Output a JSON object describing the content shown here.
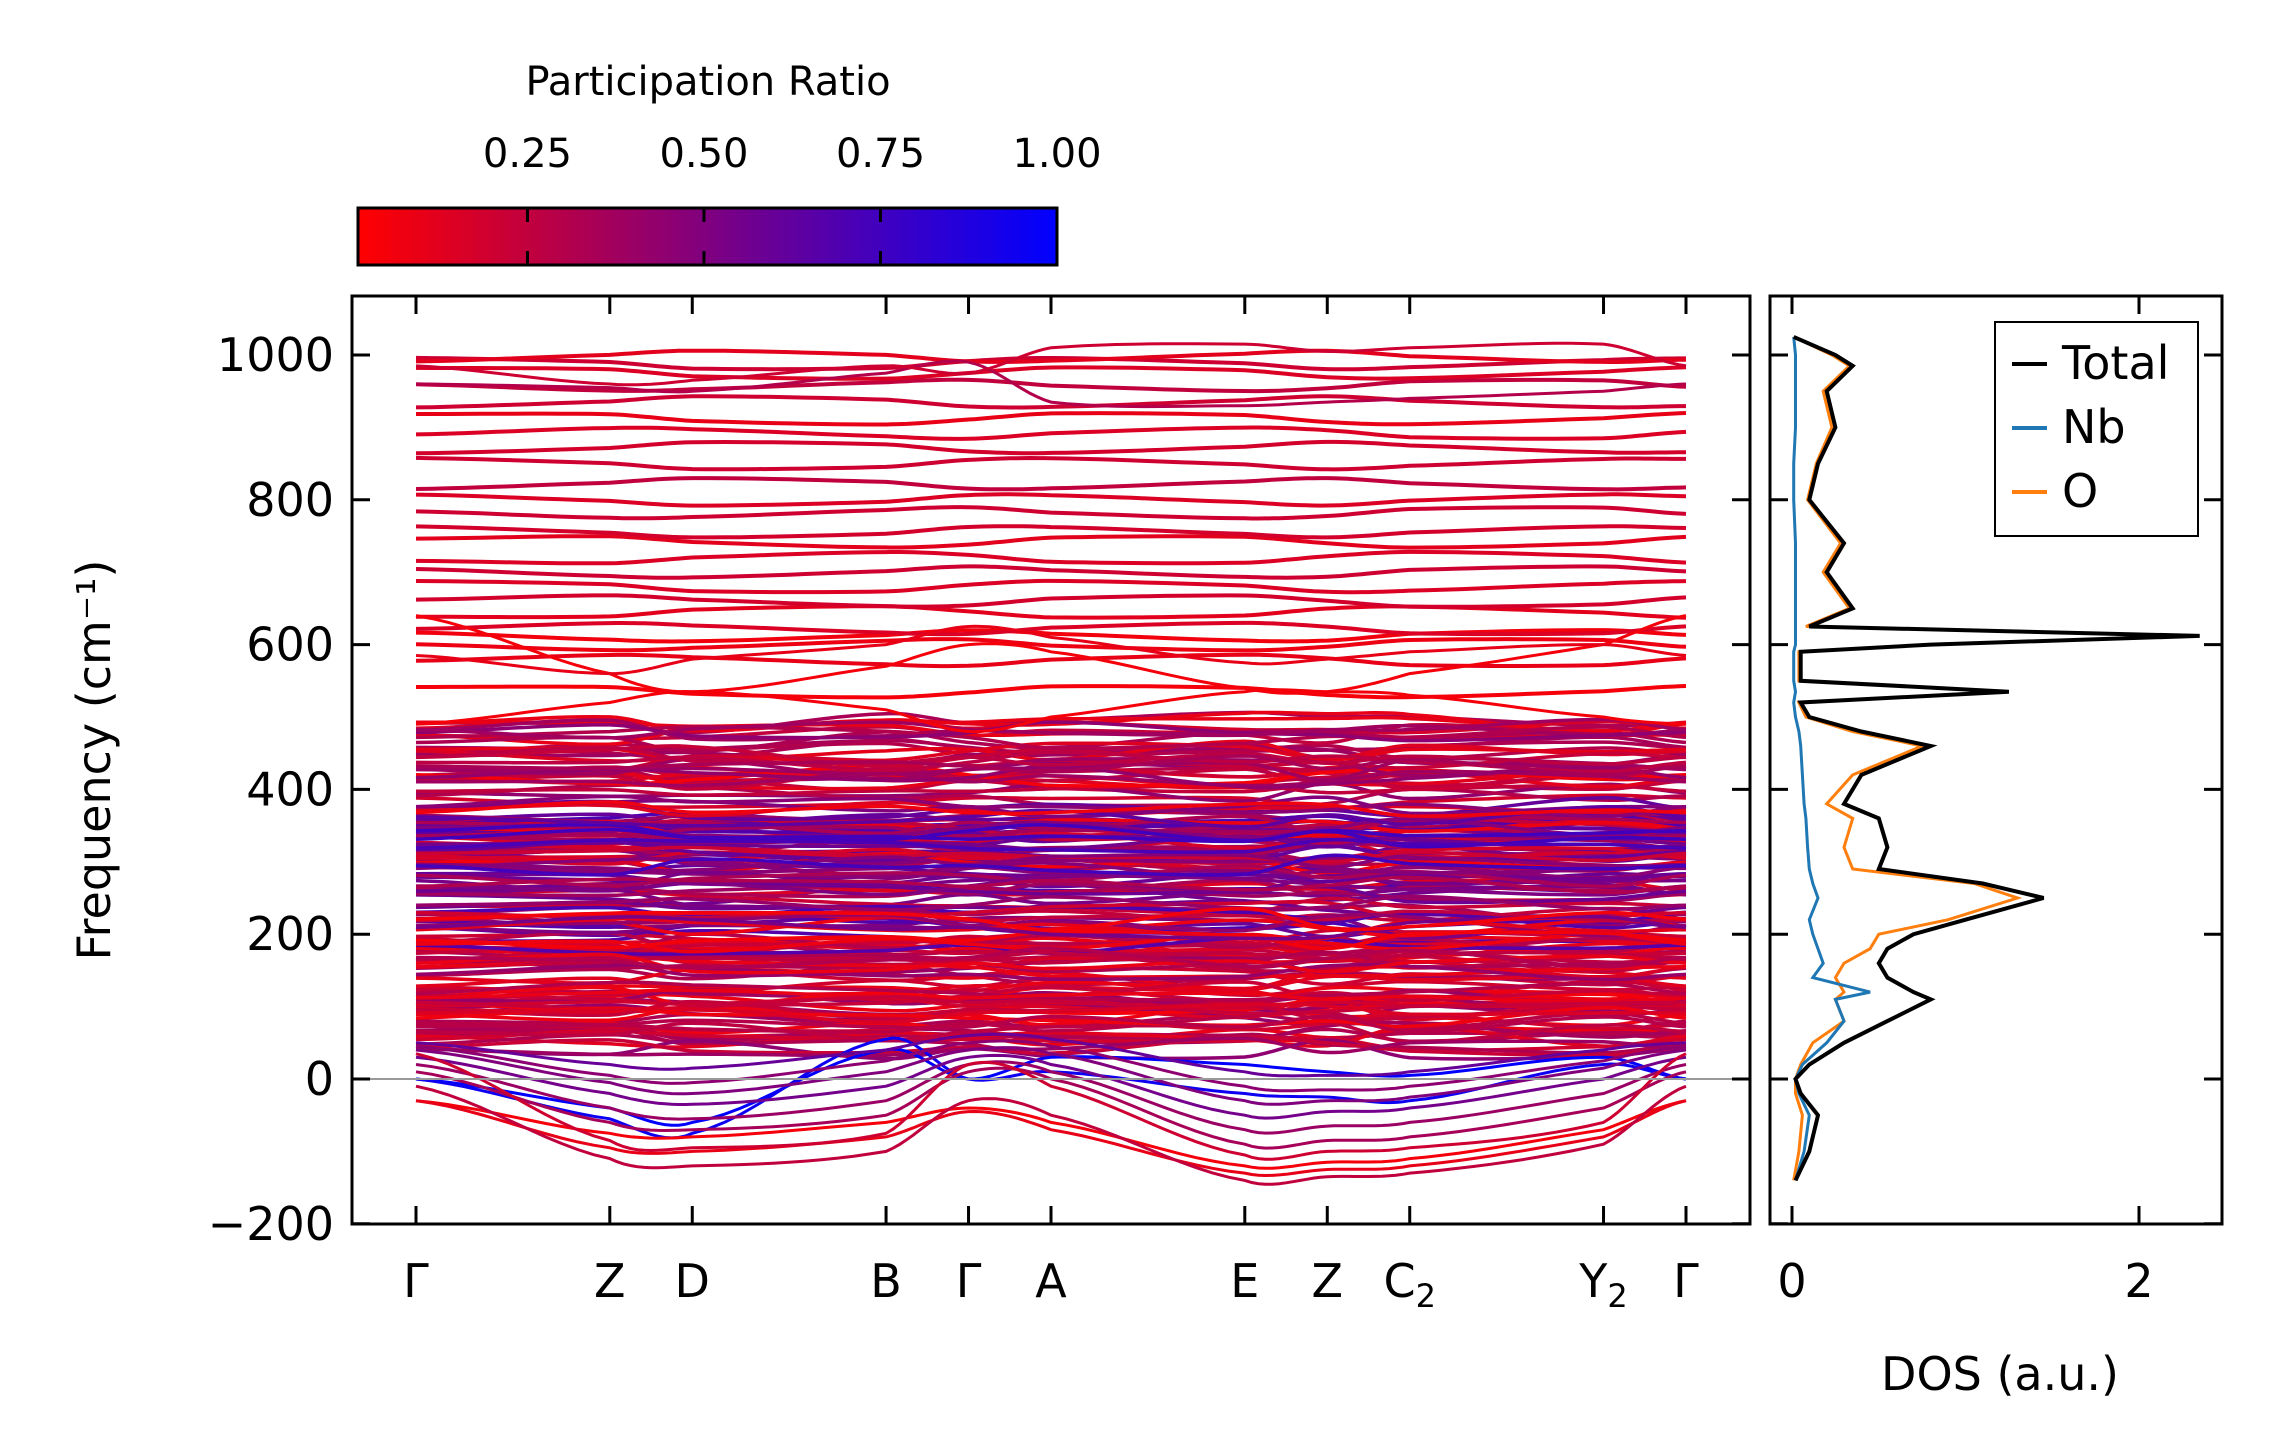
{
  "chart_data": [
    {
      "type": "line",
      "title": "",
      "xlabel": "",
      "ylabel": "Frequency (cm⁻¹)",
      "ylim": [
        -200,
        1083
      ],
      "yticks": [
        -200,
        0,
        200,
        400,
        600,
        800,
        1000
      ],
      "ytick_labels": [
        "−200",
        "0",
        "200",
        "400",
        "600",
        "800",
        "1000"
      ],
      "kpoints": [
        "Γ",
        "Z",
        "D",
        "B",
        "Γ",
        "A",
        "E",
        "Z",
        "C",
        "Y",
        "Γ"
      ],
      "kpoint_subscripts": [
        "",
        "",
        "",
        "",
        "",
        "",
        "",
        "",
        "2",
        "2",
        ""
      ],
      "kpoint_positions": [
        0,
        2.35,
        3.35,
        5.7,
        6.7,
        7.7,
        10.05,
        11.05,
        12.05,
        14.4,
        15.4
      ],
      "zero_line": 0,
      "colorbar": {
        "label": "Participation Ratio",
        "range": [
          0.01,
          1.0
        ],
        "ticks": [
          0.25,
          0.5,
          0.75,
          1.0
        ],
        "tick_labels": [
          "0.25",
          "0.50",
          "0.75",
          "1.00"
        ],
        "colors": [
          "#ff0000",
          "#0000ff"
        ]
      },
      "flat_bands": [
        {
          "f": 535,
          "pr": 0.05
        },
        {
          "f": 578,
          "pr": 0.1
        },
        {
          "f": 600,
          "pr": 0.08
        },
        {
          "f": 612,
          "pr": 0.06
        },
        {
          "f": 622,
          "pr": 0.15
        },
        {
          "f": 645,
          "pr": 0.12
        },
        {
          "f": 660,
          "pr": 0.18
        },
        {
          "f": 680,
          "pr": 0.15
        },
        {
          "f": 700,
          "pr": 0.2
        },
        {
          "f": 720,
          "pr": 0.15
        },
        {
          "f": 742,
          "pr": 0.12
        },
        {
          "f": 756,
          "pr": 0.18
        },
        {
          "f": 782,
          "pr": 0.2
        },
        {
          "f": 800,
          "pr": 0.15
        },
        {
          "f": 822,
          "pr": 0.25
        },
        {
          "f": 850,
          "pr": 0.2
        },
        {
          "f": 872,
          "pr": 0.18
        },
        {
          "f": 892,
          "pr": 0.15
        },
        {
          "f": 912,
          "pr": 0.1
        },
        {
          "f": 935,
          "pr": 0.2
        },
        {
          "f": 958,
          "pr": 0.25
        },
        {
          "f": 975,
          "pr": 0.15
        },
        {
          "f": 988,
          "pr": 0.2
        },
        {
          "f": 998,
          "pr": 0.12
        }
      ],
      "dense_region": {
        "fmin": 40,
        "fmax": 495,
        "count": 190,
        "pr_low": 0.05,
        "pr_high": 0.75
      },
      "bands": [
        {
          "f": [
            0,
            -40,
            -60,
            40,
            0,
            30,
            20,
            10,
            5,
            30,
            0
          ],
          "pr": 1.0
        },
        {
          "f": [
            0,
            -55,
            -75,
            55,
            0,
            10,
            -20,
            -25,
            -30,
            20,
            0
          ],
          "pr": 0.95
        },
        {
          "f": [
            -30,
            -75,
            -80,
            -60,
            -40,
            -60,
            -120,
            -115,
            -110,
            -70,
            -30
          ],
          "pr": 0.05
        },
        {
          "f": [
            -30,
            -95,
            -100,
            -80,
            -45,
            -70,
            -130,
            -125,
            -120,
            -80,
            -30
          ],
          "pr": 0.1
        },
        {
          "f": [
            -10,
            -110,
            -120,
            -100,
            -30,
            -50,
            -140,
            -135,
            -130,
            -90,
            -10
          ],
          "pr": 0.25
        },
        {
          "f": [
            10,
            -60,
            -70,
            -50,
            10,
            0,
            -90,
            -85,
            -80,
            -40,
            10
          ],
          "pr": 0.35
        },
        {
          "f": [
            20,
            -40,
            -55,
            -30,
            20,
            10,
            -70,
            -65,
            -60,
            -20,
            20
          ],
          "pr": 0.4
        },
        {
          "f": [
            30,
            -20,
            -35,
            -10,
            30,
            20,
            -50,
            -45,
            -40,
            0,
            30
          ],
          "pr": 0.55
        },
        {
          "f": [
            40,
            -5,
            -20,
            10,
            40,
            35,
            -30,
            -30,
            -25,
            15,
            40
          ],
          "pr": 0.5
        },
        {
          "f": [
            45,
            5,
            -5,
            25,
            50,
            45,
            -10,
            -15,
            -10,
            25,
            45
          ],
          "pr": 0.45
        },
        {
          "f": [
            35,
            -85,
            -95,
            -75,
            20,
            -10,
            -105,
            -100,
            -95,
            -60,
            35
          ],
          "pr": 0.2
        },
        {
          "f": [
            50,
            20,
            15,
            40,
            60,
            55,
            10,
            5,
            10,
            40,
            50
          ],
          "pr": 0.6
        },
        {
          "f": [
            490,
            520,
            535,
            510,
            480,
            500,
            535,
            535,
            530,
            500,
            490
          ],
          "pr": 0.05
        },
        {
          "f": [
            640,
            560,
            535,
            570,
            600,
            590,
            540,
            535,
            560,
            600,
            640
          ],
          "pr": 0.05
        },
        {
          "f": [
            585,
            560,
            580,
            600,
            625,
            610,
            575,
            580,
            590,
            600,
            585
          ],
          "pr": 0.1
        },
        {
          "f": [
            960,
            955,
            950,
            975,
            990,
            935,
            930,
            935,
            940,
            950,
            960
          ],
          "pr": 0.3
        },
        {
          "f": [
            985,
            960,
            965,
            985,
            975,
            1010,
            1015,
            1005,
            1010,
            1015,
            985
          ],
          "pr": 0.2
        }
      ]
    },
    {
      "type": "line",
      "xlabel": "DOS (a.u.)",
      "xlim": [
        -0.12,
        2.48
      ],
      "xticks": [
        0,
        2
      ],
      "xtick_labels": [
        "0",
        "2"
      ],
      "ylim": [
        -200,
        1083
      ],
      "legend": {
        "position": "top-right",
        "entries": [
          "Total",
          "Nb",
          "O"
        ]
      },
      "freq": [
        -140,
        -100,
        -50,
        -20,
        0,
        20,
        50,
        80,
        110,
        120,
        140,
        160,
        180,
        200,
        220,
        250,
        270,
        290,
        320,
        360,
        380,
        420,
        460,
        480,
        500,
        520,
        535,
        550,
        590,
        600,
        612,
        625,
        650,
        700,
        740,
        800,
        850,
        900,
        950,
        985,
        1000,
        1025
      ],
      "series": [
        {
          "name": "Total",
          "color": "#000000",
          "values": [
            0.02,
            0.1,
            0.15,
            0.05,
            0.02,
            0.1,
            0.3,
            0.55,
            0.8,
            0.7,
            0.55,
            0.5,
            0.55,
            0.7,
            1.0,
            1.45,
            1.1,
            0.5,
            0.55,
            0.5,
            0.3,
            0.4,
            0.8,
            0.4,
            0.1,
            0.05,
            1.25,
            0.05,
            0.05,
            0.8,
            2.35,
            0.1,
            0.35,
            0.2,
            0.3,
            0.1,
            0.15,
            0.25,
            0.2,
            0.35,
            0.25,
            0.01
          ]
        },
        {
          "name": "Nb",
          "color": "#1f77b4",
          "values": [
            0.02,
            0.07,
            0.1,
            0.04,
            0.02,
            0.06,
            0.2,
            0.3,
            0.25,
            0.45,
            0.12,
            0.18,
            0.15,
            0.12,
            0.1,
            0.15,
            0.12,
            0.1,
            0.09,
            0.08,
            0.07,
            0.06,
            0.05,
            0.04,
            0.02,
            0.01,
            0.02,
            0.01,
            0.01,
            0.02,
            0.02,
            0.02,
            0.02,
            0.02,
            0.02,
            0.01,
            0.01,
            0.02,
            0.02,
            0.02,
            0.02,
            0.01
          ]
        },
        {
          "name": "O",
          "color": "#ff7f0e",
          "values": [
            0.01,
            0.04,
            0.06,
            0.02,
            0.02,
            0.05,
            0.12,
            0.3,
            0.25,
            0.3,
            0.25,
            0.3,
            0.45,
            0.5,
            0.9,
            1.3,
            1.05,
            0.35,
            0.3,
            0.35,
            0.2,
            0.35,
            0.75,
            0.35,
            0.08,
            0.04,
            1.22,
            0.04,
            0.04,
            0.78,
            2.32,
            0.08,
            0.33,
            0.18,
            0.28,
            0.09,
            0.14,
            0.23,
            0.18,
            0.33,
            0.23,
            0.01
          ]
        }
      ]
    }
  ]
}
